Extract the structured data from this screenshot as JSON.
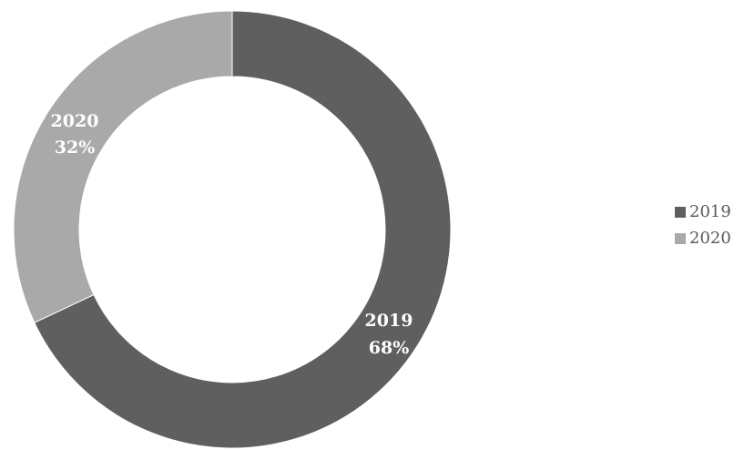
{
  "chart_data": {
    "type": "pie",
    "variant": "donut",
    "title": "",
    "slices": [
      {
        "name": "2019",
        "value": 68,
        "label": "2019",
        "percent_label": "68%",
        "color": "#5f5f5f"
      },
      {
        "name": "2020",
        "value": 32,
        "label": "2020",
        "percent_label": "32%",
        "color": "#a9a9a9"
      }
    ],
    "legend": {
      "position": "right",
      "entries": [
        "2019",
        "2020"
      ]
    },
    "start_angle": "12 o'clock",
    "direction": "clockwise"
  }
}
